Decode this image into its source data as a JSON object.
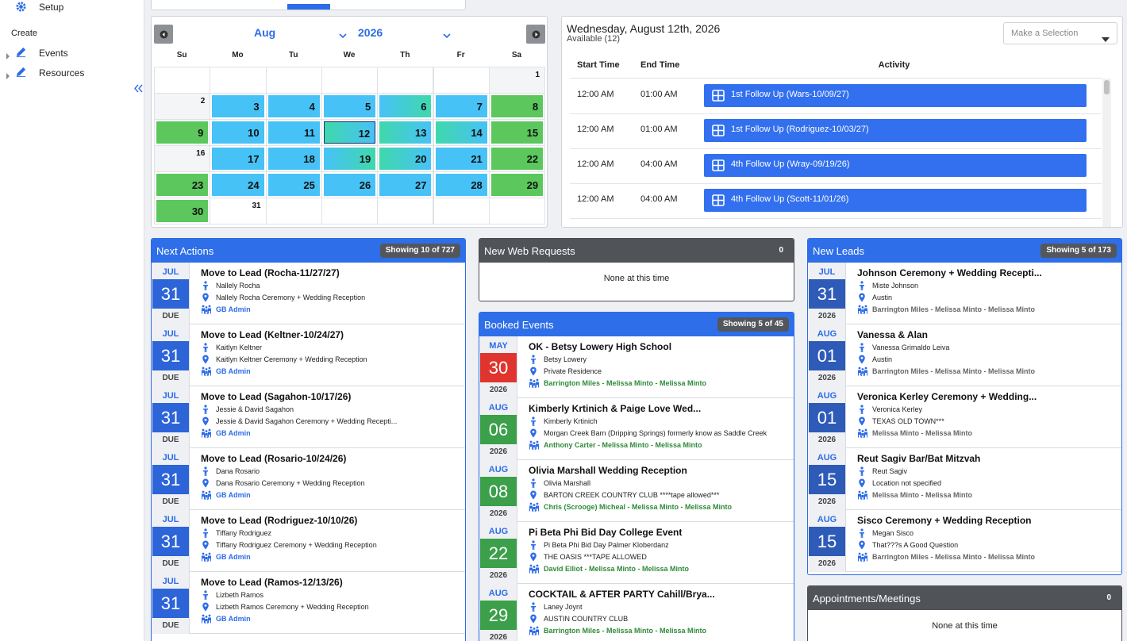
{
  "sidebar": {
    "setup": "Setup",
    "section": "Create",
    "items": [
      "Events",
      "Resources"
    ]
  },
  "calendar": {
    "month": "Aug",
    "year": "2026",
    "weekdays": [
      "Su",
      "Mo",
      "Tu",
      "We",
      "Th",
      "Fr",
      "Sa"
    ],
    "days": [
      {
        "day": 1,
        "filled": false,
        "color": "#f4f5f7"
      },
      {
        "day": 2,
        "filled": false,
        "color": "#f4f5f7"
      },
      {
        "day": 3,
        "filled": true,
        "color": "#47c2f7"
      },
      {
        "day": 4,
        "filled": true,
        "color": "#47c2f7"
      },
      {
        "day": 5,
        "filled": true,
        "color": "#47c2f7"
      },
      {
        "day": 6,
        "filled": true,
        "color": [
          "#47c2f7",
          "#3fd8ab"
        ]
      },
      {
        "day": 7,
        "filled": true,
        "color": "#47c2f7"
      },
      {
        "day": 8,
        "filled": true,
        "color": "#5bc75c"
      },
      {
        "day": 9,
        "filled": true,
        "color": "#5bc75c"
      },
      {
        "day": 10,
        "filled": true,
        "color": "#47c2f7"
      },
      {
        "day": 11,
        "filled": true,
        "color": "#47c2f7"
      },
      {
        "day": 12,
        "filled": true,
        "color": [
          "#3fd8ab",
          "#47c2f7"
        ],
        "outlined": true
      },
      {
        "day": 13,
        "filled": true,
        "color": [
          "#3fd8ab",
          "#47c2f7"
        ]
      },
      {
        "day": 14,
        "filled": true,
        "color": [
          "#3fd8ab",
          "#47c2f7"
        ]
      },
      {
        "day": 15,
        "filled": true,
        "color": "#5bc75c"
      },
      {
        "day": 16,
        "filled": false,
        "color": "#f4f5f7"
      },
      {
        "day": 17,
        "filled": true,
        "color": "#47c2f7"
      },
      {
        "day": 18,
        "filled": true,
        "color": "#47c2f7"
      },
      {
        "day": 19,
        "filled": true,
        "color": [
          "#47c2f7",
          "#3fd8ab"
        ]
      },
      {
        "day": 20,
        "filled": true,
        "color": [
          "#3fd8ab",
          "#47c2f7"
        ]
      },
      {
        "day": 21,
        "filled": true,
        "color": "#47c2f7"
      },
      {
        "day": 22,
        "filled": true,
        "color": "#5bc75c"
      },
      {
        "day": 23,
        "filled": true,
        "color": "#5bc75c"
      },
      {
        "day": 24,
        "filled": true,
        "color": "#47c2f7"
      },
      {
        "day": 25,
        "filled": true,
        "color": "#47c2f7"
      },
      {
        "day": 26,
        "filled": true,
        "color": "#47c2f7"
      },
      {
        "day": 27,
        "filled": true,
        "color": "#47c2f7"
      },
      {
        "day": 28,
        "filled": true,
        "color": "#47c2f7"
      },
      {
        "day": 29,
        "filled": true,
        "color": "#5bc75c"
      },
      {
        "day": 30,
        "filled": true,
        "color": "#5bc75c"
      },
      {
        "day": 31,
        "filled": false,
        "color": "#ffffff"
      }
    ]
  },
  "schedule": {
    "date": "Wednesday, August 12th, 2026",
    "available": "Available (12)",
    "select": "Make a Selection",
    "columns": [
      "Start Time",
      "End Time",
      "Activity"
    ],
    "rows": [
      {
        "start": "12:00 AM",
        "end": "01:00 AM",
        "activity": "1st Follow Up (Wars-10/09/27)"
      },
      {
        "start": "12:00 AM",
        "end": "01:00 AM",
        "activity": "1st Follow Up (Rodriguez-10/03/27)"
      },
      {
        "start": "12:00 AM",
        "end": "04:00 AM",
        "activity": "4th Follow Up (Wray-09/19/26)"
      },
      {
        "start": "12:00 AM",
        "end": "04:00 AM",
        "activity": "4th Follow Up (Scott-11/01/26)"
      }
    ]
  },
  "next_actions": {
    "title": "Next Actions",
    "badge": "Showing 10 of 727",
    "day_color": "#2d64d8",
    "items": [
      {
        "month": "JUL",
        "day": "31",
        "tag": "DUE",
        "title": "Move to Lead (Rocha-11/27/27)",
        "person": "Nallely Rocha",
        "event": "Nallely Rocha Ceremony + Wedding Reception",
        "owner": "GB Admin"
      },
      {
        "month": "JUL",
        "day": "31",
        "tag": "DUE",
        "title": "Move to Lead (Keltner-10/24/27)",
        "person": "Kaitlyn Keltner",
        "event": "Kaitlyn Keltner Ceremony + Wedding Reception",
        "owner": "GB Admin"
      },
      {
        "month": "JUL",
        "day": "31",
        "tag": "DUE",
        "title": "Move to Lead (Sagahon-10/17/26)",
        "person": "Jessie & David Sagahon",
        "event": "Jessie & David Sagahon Ceremony + Wedding Recepti...",
        "owner": "GB Admin"
      },
      {
        "month": "JUL",
        "day": "31",
        "tag": "DUE",
        "title": "Move to Lead (Rosario-10/24/26)",
        "person": "Dana Rosario",
        "event": "Dana Rosario Ceremony + Wedding Reception",
        "owner": "GB Admin"
      },
      {
        "month": "JUL",
        "day": "31",
        "tag": "DUE",
        "title": "Move to Lead (Rodriguez-10/10/26)",
        "person": "Tiffany Rodriguez",
        "event": "Tiffany Rodriguez Ceremony + Wedding Reception",
        "owner": "GB Admin"
      },
      {
        "month": "JUL",
        "day": "31",
        "tag": "DUE",
        "title": "Move to Lead (Ramos-12/13/26)",
        "person": "Lizbeth Ramos",
        "event": "Lizbeth Ramos Ceremony + Wedding Reception",
        "owner": "GB Admin"
      }
    ]
  },
  "web_requests": {
    "title": "New Web Requests",
    "count": "0",
    "empty": "None at this time"
  },
  "booked_events": {
    "title": "Booked Events",
    "badge": "Showing 5 of 45",
    "items": [
      {
        "month": "MAY",
        "day": "30",
        "year": "2026",
        "color": "#e0352f",
        "title": "OK - Betsy Lowery High School",
        "person": "Betsy Lowery",
        "location": "Private Residence",
        "staff": "Barrington Miles - Melissa Minto - Melissa Minto"
      },
      {
        "month": "AUG",
        "day": "06",
        "year": "2026",
        "color": "#3c9f4a",
        "title": "Kimberly Krtinich & Paige Love Wed...",
        "person": "Kimberly Krtinich",
        "location": "Morgan Creek Barn (Dripping Springs) formerly know as Saddle Creek",
        "staff": "Anthony Carter - Melissa Minto - Melissa Minto"
      },
      {
        "month": "AUG",
        "day": "08",
        "year": "2026",
        "color": "#3c9f4a",
        "title": "Olivia Marshall Wedding Reception",
        "person": "Olivia Marshall",
        "location": "BARTON CREEK COUNTRY CLUB ****tape allowed***",
        "staff": "Chris (Scrooge) Micheal - Melissa Minto - Melissa Minto"
      },
      {
        "month": "AUG",
        "day": "22",
        "year": "2026",
        "color": "#3c9f4a",
        "title": "Pi Beta Phi Bid Day College Event",
        "person": "Pi Beta Phi Bid Day Palmer Kloberdanz",
        "location": "THE OASIS ***TAPE ALLOWED",
        "staff": "David Elliot - Melissa Minto - Melissa Minto"
      },
      {
        "month": "AUG",
        "day": "29",
        "year": "2026",
        "color": "#3c9f4a",
        "title": "COCKTAIL & AFTER PARTY Cahill/Brya...",
        "person": "Laney Joynt",
        "location": "AUSTIN COUNTRY CLUB",
        "staff": "Barrington Miles - Melissa Minto - Melissa Minto"
      }
    ]
  },
  "new_leads": {
    "title": "New Leads",
    "badge": "Showing 5 of 173",
    "day_color": "#2f5bb8",
    "items": [
      {
        "month": "JUL",
        "day": "31",
        "year": "2026",
        "title": "Johnson Ceremony + Wedding Recepti...",
        "person": "Miste Johnson",
        "location": "Austin",
        "staff": "Barrington Miles - Melissa Minto - Melissa Minto"
      },
      {
        "month": "AUG",
        "day": "01",
        "year": "2026",
        "title": "Vanessa & Alan",
        "person": "Vanessa Grimaldo Leiva",
        "location": "Austin",
        "staff": "Barrington Miles - Melissa Minto - Melissa Minto"
      },
      {
        "month": "AUG",
        "day": "01",
        "year": "2026",
        "title": "Veronica Kerley Ceremony + Wedding...",
        "person": "Veronica Kerley",
        "location": "TEXAS OLD TOWN***",
        "staff": "Melissa Minto - Melissa Minto"
      },
      {
        "month": "AUG",
        "day": "15",
        "year": "2026",
        "title": "Reut Sagiv Bar/Bat Mitzvah",
        "person": "Reut Sagiv",
        "location": "Location not specified",
        "staff": "Melissa Minto - Melissa Minto"
      },
      {
        "month": "AUG",
        "day": "15",
        "year": "2026",
        "title": "Sisco Ceremony + Wedding Reception",
        "person": "Megan Sisco",
        "location": "That???s A Good Question",
        "staff": "Barrington Miles - Melissa Minto - Melissa Minto"
      }
    ]
  },
  "appointments": {
    "title": "Appointments/Meetings",
    "count": "0",
    "empty": "None at this time"
  }
}
